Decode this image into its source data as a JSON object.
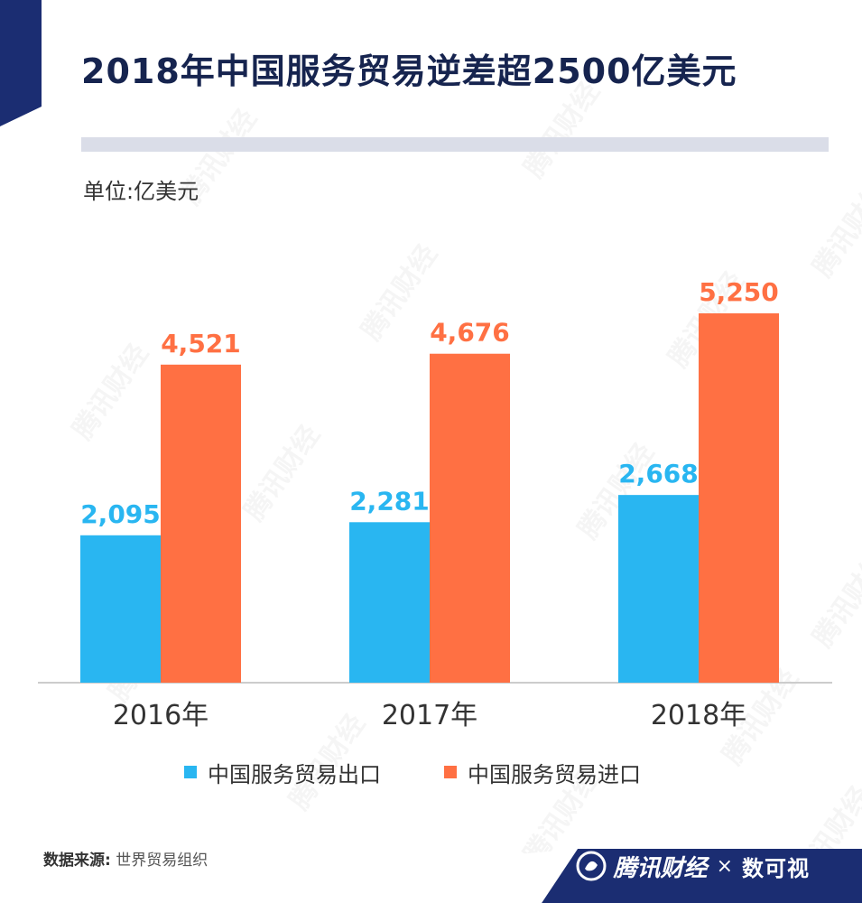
{
  "title": "2018年中国服务贸易逆差超2500亿美元",
  "unit_label": "单位:亿美元",
  "source": {
    "label": "数据来源:",
    "value": "世界贸易组织"
  },
  "brand": {
    "name": "腾讯财经",
    "separator": "×",
    "partner": "数可视",
    "watermark_text": "腾讯财经"
  },
  "colors": {
    "title": "#16244f",
    "export": "#29b6f1",
    "import": "#ff7043",
    "corner": "#1b2d72",
    "title_bar": "#dadde8"
  },
  "chart_data": {
    "type": "bar",
    "categories": [
      "2016年",
      "2017年",
      "2018年"
    ],
    "series": [
      {
        "name": "中国服务贸易出口",
        "values": [
          2095,
          2281,
          2668
        ],
        "labels": [
          "2,095",
          "2,281",
          "2,668"
        ],
        "color": "#29b6f1"
      },
      {
        "name": "中国服务贸易进口",
        "values": [
          4521,
          4676,
          5250
        ],
        "labels": [
          "4,521",
          "4,676",
          "5,250"
        ],
        "color": "#ff7043"
      }
    ],
    "ylim": [
      0,
      5250
    ],
    "xlabel": "",
    "ylabel": "",
    "grid": false,
    "legend": "bottom"
  }
}
